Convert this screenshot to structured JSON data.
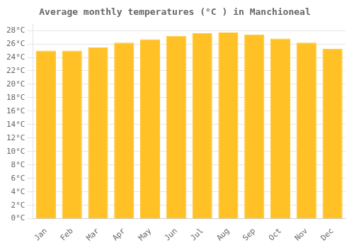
{
  "chart_data": {
    "type": "bar",
    "title": "Average monthly temperatures (°C ) in Manchioneal",
    "categories": [
      "Jan",
      "Feb",
      "Mar",
      "Apr",
      "May",
      "Jun",
      "Jul",
      "Aug",
      "Sep",
      "Oct",
      "Nov",
      "Dec"
    ],
    "values": [
      25.0,
      25.0,
      25.5,
      26.2,
      26.7,
      27.2,
      27.6,
      27.7,
      27.4,
      26.8,
      26.2,
      25.3
    ],
    "color": "#FFC125",
    "ylim": [
      0,
      29
    ],
    "yticks": [
      {
        "value": 0,
        "label": "0°C"
      },
      {
        "value": 2,
        "label": "2°C"
      },
      {
        "value": 4,
        "label": "4°C"
      },
      {
        "value": 6,
        "label": "6°C"
      },
      {
        "value": 8,
        "label": "8°C"
      },
      {
        "value": 10,
        "label": "10°C"
      },
      {
        "value": 12,
        "label": "12°C"
      },
      {
        "value": 14,
        "label": "14°C"
      },
      {
        "value": 16,
        "label": "16°C"
      },
      {
        "value": 18,
        "label": "18°C"
      },
      {
        "value": 20,
        "label": "20°C"
      },
      {
        "value": 22,
        "label": "22°C"
      },
      {
        "value": 24,
        "label": "24°C"
      },
      {
        "value": 26,
        "label": "26°C"
      },
      {
        "value": 28,
        "label": "28°C"
      }
    ],
    "grid": true
  }
}
